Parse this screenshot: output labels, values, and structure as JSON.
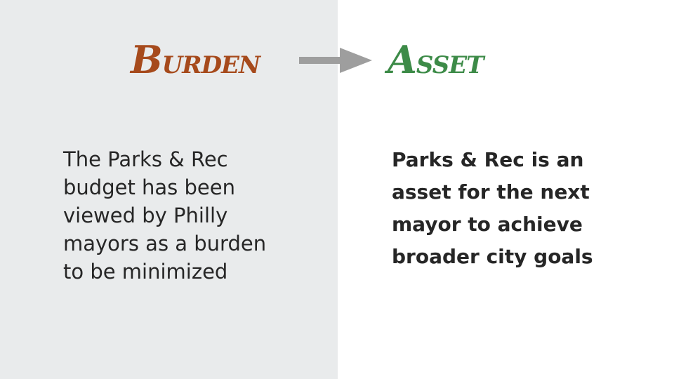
{
  "burden": {
    "cap": "B",
    "rest": "URDEN"
  },
  "asset": {
    "cap": "A",
    "rest": "SSET"
  },
  "colors": {
    "burden": "#a64a1c",
    "asset": "#3d8b48",
    "arrow": "#9e9e9e",
    "left_background": "#e9ebec",
    "text": "#262626"
  },
  "left_text": {
    "lines": [
      "The Parks & Rec",
      "budget has been",
      "viewed by Philly",
      "mayors as a burden",
      "to be minimized"
    ]
  },
  "right_text": {
    "lines": [
      "Parks & Rec is an",
      "asset for the next",
      "mayor to achieve",
      "broader city goals"
    ]
  }
}
